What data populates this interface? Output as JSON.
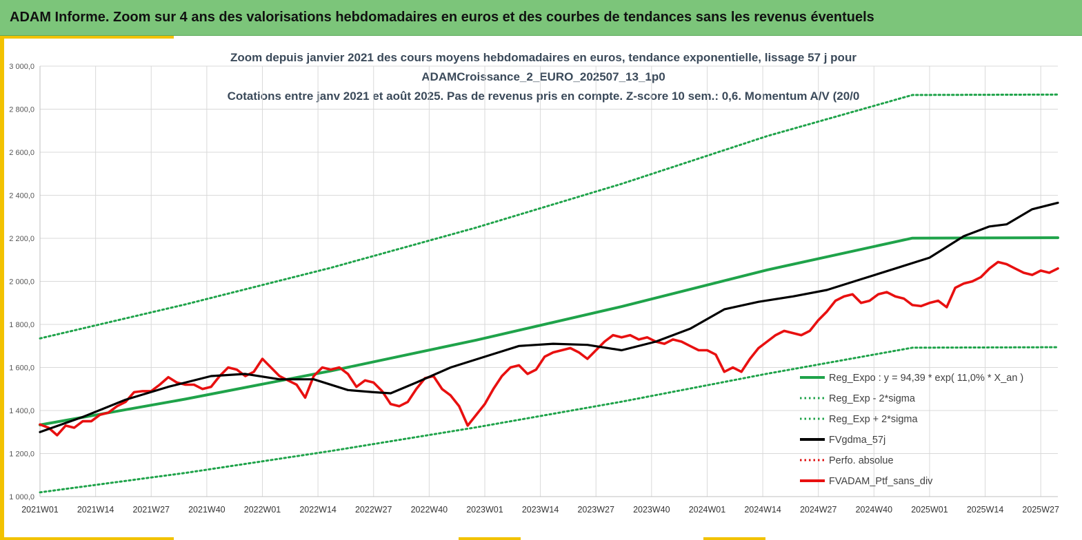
{
  "header": {
    "title": "ADAM Informe. Zoom sur 4 ans des valorisations hebdomadaires en euros et des courbes de tendances sans les revenus éventuels"
  },
  "chart_data": {
    "type": "line",
    "title_lines": [
      "Zoom depuis janvier 2021 des cours moyens hebdomadaires  en euros, tendance exponentielle, lissage 57 j pour",
      "ADAMCroissance_2_EURO_202507_13_1p0",
      "Cotations entre janv 2021 et août 2025. Pas de revenus pris en compte. Z-score 10 sem.: 0,6. Momentum A/V (20/0"
    ],
    "ylim": [
      1000,
      3000
    ],
    "yticks": [
      "1 000,0",
      "1 200,0",
      "1 400,0",
      "1 600,0",
      "1 800,0",
      "2 000,0",
      "2 200,0",
      "2 400,0",
      "2 600,0",
      "2 800,0",
      "3 000,0"
    ],
    "yticks_values": [
      1000,
      1200,
      1400,
      1600,
      1800,
      2000,
      2200,
      2400,
      2600,
      2800,
      3000
    ],
    "xticks": [
      "2021W01",
      "2021W14",
      "2021W27",
      "2021W40",
      "2022W01",
      "2022W14",
      "2022W27",
      "2022W40",
      "2023W01",
      "2023W14",
      "2023W27",
      "2023W40",
      "2024W01",
      "2024W14",
      "2024W27",
      "2024W40",
      "2025W01",
      "2025W14",
      "2025W27"
    ],
    "grid": true,
    "legend_position": "bottom-right",
    "series": [
      {
        "name": "Reg_Expo : y = 94,39 * exp( 11,0% *  X_an )",
        "color": "#1fa34a",
        "style": "solid",
        "x": [
          0,
          34,
          68,
          102,
          136,
          170,
          204,
          238
        ],
        "y": [
          1333,
          1453,
          1584,
          1727,
          1883,
          2053,
          2201,
          2203
        ]
      },
      {
        "name": "Reg_Exp - 2*sigma",
        "color": "#1fa34a",
        "style": "dotted",
        "x": [
          0,
          34,
          68,
          102,
          136,
          170,
          204,
          238
        ],
        "y": [
          1020,
          1110,
          1212,
          1322,
          1441,
          1571,
          1692,
          1694
        ]
      },
      {
        "name": "Reg_Exp + 2*sigma",
        "color": "#1fa34a",
        "style": "dotted",
        "x": [
          0,
          34,
          68,
          102,
          136,
          170,
          204,
          238
        ],
        "y": [
          1735,
          1893,
          2063,
          2250,
          2453,
          2675,
          2866,
          2868
        ]
      },
      {
        "name": "FVgdma_57j",
        "color": "#000000",
        "style": "solid",
        "x": [
          0,
          10,
          20,
          30,
          40,
          48,
          56,
          64,
          72,
          78,
          82,
          88,
          96,
          104,
          112,
          120,
          128,
          136,
          144,
          152,
          160,
          168,
          176,
          184,
          192,
          200,
          208,
          216,
          222,
          226,
          232,
          238
        ],
        "y": [
          1300,
          1370,
          1450,
          1510,
          1560,
          1570,
          1545,
          1545,
          1495,
          1485,
          1480,
          1530,
          1600,
          1650,
          1700,
          1710,
          1705,
          1680,
          1720,
          1780,
          1870,
          1905,
          1930,
          1960,
          2010,
          2060,
          2110,
          2210,
          2255,
          2265,
          2335,
          2365
        ]
      },
      {
        "name": "Perfo. absolue",
        "color": "#e01010",
        "style": "dotted",
        "x": [],
        "y": []
      },
      {
        "name": "FVADAM_Ptf_sans_div",
        "color": "#e81010",
        "style": "solid",
        "x": [
          0,
          2,
          4,
          6,
          8,
          10,
          12,
          14,
          16,
          18,
          20,
          22,
          24,
          26,
          28,
          30,
          32,
          34,
          36,
          38,
          40,
          42,
          44,
          46,
          48,
          50,
          52,
          54,
          56,
          58,
          60,
          62,
          64,
          66,
          68,
          70,
          72,
          74,
          76,
          78,
          80,
          82,
          84,
          86,
          88,
          90,
          92,
          94,
          96,
          98,
          100,
          102,
          104,
          106,
          108,
          110,
          112,
          114,
          116,
          118,
          120,
          122,
          124,
          126,
          128,
          130,
          132,
          134,
          136,
          138,
          140,
          142,
          144,
          146,
          148,
          150,
          152,
          154,
          156,
          158,
          160,
          162,
          164,
          166,
          168,
          170,
          172,
          174,
          176,
          178,
          180,
          182,
          184,
          186,
          188,
          190,
          192,
          194,
          196,
          198,
          200,
          202,
          204,
          206,
          208,
          210,
          212,
          214,
          216,
          218,
          220,
          222,
          224,
          226,
          228,
          230,
          232,
          234,
          236,
          238
        ],
        "y": [
          1335,
          1320,
          1285,
          1330,
          1320,
          1350,
          1350,
          1380,
          1390,
          1420,
          1440,
          1485,
          1490,
          1490,
          1520,
          1555,
          1530,
          1520,
          1520,
          1500,
          1510,
          1560,
          1600,
          1590,
          1560,
          1580,
          1640,
          1600,
          1560,
          1540,
          1520,
          1460,
          1560,
          1600,
          1590,
          1600,
          1570,
          1510,
          1540,
          1530,
          1490,
          1430,
          1420,
          1440,
          1500,
          1550,
          1560,
          1500,
          1470,
          1420,
          1330,
          1380,
          1430,
          1500,
          1560,
          1600,
          1610,
          1570,
          1590,
          1650,
          1670,
          1680,
          1690,
          1670,
          1640,
          1680,
          1720,
          1750,
          1740,
          1750,
          1730,
          1740,
          1720,
          1710,
          1730,
          1720,
          1700,
          1680,
          1680,
          1660,
          1580,
          1600,
          1580,
          1640,
          1690,
          1720,
          1750,
          1770,
          1760,
          1750,
          1770,
          1820,
          1860,
          1910,
          1930,
          1940,
          1900,
          1910,
          1940,
          1950,
          1930,
          1920,
          1890,
          1885,
          1900,
          1910,
          1880,
          1970,
          1990,
          2000,
          2020,
          2060,
          2090,
          2080,
          2060,
          2040,
          2030,
          2050,
          2040,
          2060
        ]
      }
    ]
  }
}
